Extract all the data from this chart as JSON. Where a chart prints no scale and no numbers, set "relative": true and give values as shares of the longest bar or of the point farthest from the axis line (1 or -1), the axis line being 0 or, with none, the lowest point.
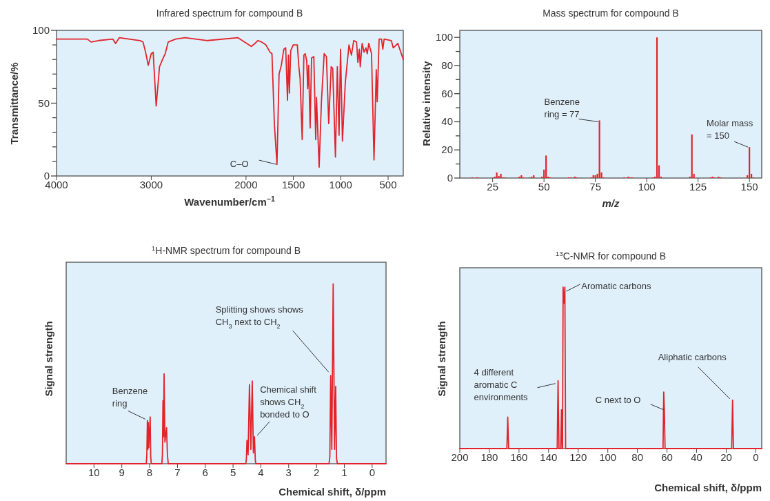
{
  "chart_data": [
    {
      "type": "line",
      "title": "Infrared spectrum for compound B",
      "xlabel": "Wavenumber/cm$^{−1}$",
      "ylabel": "Transmittance/%",
      "color": "#e3232b",
      "x": [
        4000,
        3675,
        3635,
        3556,
        3405,
        3377,
        3337,
        3119,
        3087,
        3060,
        3032,
        3000,
        2980,
        2948,
        2913,
        2881,
        2853,
        2821,
        2742,
        2643,
        2405,
        2087,
        1944,
        1905,
        1875,
        1835,
        1790,
        1746,
        1726,
        1700,
        1673,
        1651,
        1627,
        1601,
        1581,
        1562,
        1552,
        1542,
        1528,
        1502,
        1458,
        1442,
        1429,
        1407,
        1389,
        1375,
        1359,
        1349,
        1339,
        1323,
        1308,
        1284,
        1264,
        1256,
        1228,
        1204,
        1175,
        1151,
        1127,
        1101,
        1085,
        1056,
        1036,
        1018,
        1002,
        982,
        952,
        913,
        887,
        863,
        833,
        819,
        804,
        794,
        774,
        754,
        734,
        720,
        704,
        675,
        649,
        625,
        615,
        595,
        569,
        556,
        542,
        466,
        446,
        397,
        340
      ],
      "values": [
        94,
        94,
        92,
        93,
        94,
        91,
        95,
        93,
        92,
        85,
        76,
        84,
        85,
        48,
        75,
        80,
        84,
        92,
        94,
        95,
        93,
        95,
        89,
        91,
        93,
        92,
        90,
        85,
        84,
        35,
        8,
        70,
        76,
        87,
        88,
        52,
        83,
        57,
        86,
        90,
        90,
        75,
        67,
        25,
        83,
        84,
        79,
        60,
        76,
        33,
        81,
        82,
        25,
        54,
        6,
        51,
        84,
        82,
        36,
        75,
        74,
        13,
        75,
        28,
        87,
        24,
        64,
        90,
        83,
        93,
        92,
        78,
        87,
        75,
        91,
        85,
        88,
        84,
        91,
        84,
        11,
        73,
        51,
        94,
        94,
        87,
        94,
        93,
        88,
        91,
        80
      ],
      "xlim": [
        4000,
        340
      ],
      "xticks": [
        4000,
        3000,
        2000,
        1500,
        1000,
        500
      ],
      "ylim": [
        0,
        100
      ],
      "yticks": [
        0,
        {
          "value": 10,
          "label": null
        },
        {
          "value": 20,
          "label": null
        },
        {
          "value": 30,
          "label": null
        },
        {
          "value": 40,
          "label": null
        },
        50,
        {
          "value": 60,
          "label": null
        },
        {
          "value": 70,
          "label": null
        },
        {
          "value": 80,
          "label": null
        },
        {
          "value": 90,
          "label": null
        },
        100
      ],
      "annotations": [
        {
          "text": "C–O",
          "x": 1673,
          "y": 8
        }
      ]
    },
    {
      "type": "bar",
      "title": "Mass spectrum for compound B",
      "xlabel": "m/z",
      "ylabel": "Relative intensity",
      "color": "#e3232b",
      "x": [
        15,
        17,
        18,
        26,
        27,
        28,
        29,
        30,
        31,
        38,
        39,
        40,
        43,
        44,
        45,
        49,
        50,
        51,
        52,
        53,
        62,
        63,
        65,
        66,
        73,
        74,
        75,
        76,
        77,
        78,
        79,
        89,
        91,
        92,
        93,
        103,
        104,
        105,
        106,
        107,
        121,
        122,
        123,
        131,
        132,
        133,
        135,
        136,
        149,
        150,
        151,
        152
      ],
      "values": [
        0.5,
        0.5,
        0.5,
        1,
        4,
        1.5,
        3,
        0.5,
        0.5,
        1,
        2,
        0.5,
        0.5,
        1,
        2,
        1,
        6,
        16,
        1,
        0.5,
        0.5,
        0.5,
        1,
        0.5,
        0.5,
        2,
        2,
        3,
        41,
        4,
        0.5,
        0.5,
        1,
        0.5,
        0.5,
        0.5,
        1,
        100,
        9,
        1,
        1,
        31,
        3,
        0.5,
        1,
        0.5,
        1,
        0.5,
        2,
        22,
        3,
        0.5
      ],
      "xlim": [
        9,
        156
      ],
      "xticks": [
        25,
        50,
        75,
        100,
        125,
        150
      ],
      "ylim": [
        0,
        105
      ],
      "yticks": [
        0,
        {
          "value": 10,
          "label": null
        },
        20,
        {
          "value": 30,
          "label": null
        },
        40,
        {
          "value": 50,
          "label": null
        },
        60,
        {
          "value": 70,
          "label": null
        },
        80,
        {
          "value": 90,
          "label": null
        },
        100
      ],
      "annotations": [
        {
          "text": "Benzene\nring = 77",
          "x": 77,
          "y": 41
        },
        {
          "text": "Molar mass\n= 150",
          "x": 150,
          "y": 22
        }
      ]
    },
    {
      "type": "line",
      "title": "$^{1}$H-NMR spectrum for compound B",
      "xlabel": "Chemical shift, δ/ppm",
      "ylabel": "Signal strength",
      "color": "#e3232b",
      "relative": true,
      "x": [
        11,
        8.12,
        8.1,
        8.08,
        8.065,
        8.05,
        8.03,
        7.98,
        7.96,
        7.94,
        7.56,
        7.54,
        7.52,
        7.5,
        7.48,
        7.45,
        7.39,
        7.36,
        7.33,
        4.54,
        4.52,
        4.5,
        4.46,
        4.41,
        4.36,
        4.31,
        4.27,
        4.23,
        4.2,
        4.18,
        1.55,
        1.52,
        1.49,
        1.45,
        1.4,
        1.35,
        1.31,
        1.28,
        1.25,
        -0.5
      ],
      "values": [
        0,
        0,
        0.05,
        0.24,
        0.08,
        0.23,
        0.09,
        0.26,
        0.04,
        0,
        0,
        0.05,
        0.35,
        0.15,
        0.5,
        0.12,
        0.2,
        0.05,
        0,
        0,
        0.03,
        0.13,
        0.05,
        0.44,
        0.08,
        0.46,
        0.06,
        0.15,
        0.02,
        0,
        0,
        0.04,
        0.49,
        0.08,
        1,
        0.08,
        0.43,
        0.03,
        0,
        0
      ],
      "xlim": [
        11,
        -0.5
      ],
      "xticks": [
        10,
        9,
        8,
        7,
        6,
        5,
        4,
        3,
        2,
        1,
        0
      ],
      "annotations": [
        {
          "text": "Benzene\nring",
          "x": 8.08,
          "y": 0.24
        },
        {
          "text": "Splitting shows shows\nCH$_{3}$ next to CH$_{2}$",
          "x": 1.49,
          "y": 0.49
        },
        {
          "text": "Chemical shift\nshows CH$_{2}$\nbonded to O",
          "x": 4.23,
          "y": 0.15
        }
      ]
    },
    {
      "type": "line",
      "title": "$^{13}$C-NMR for compound B",
      "xlabel": "Chemical shift, δ/ppm",
      "ylabel": "Signal strength",
      "color": "#e3232b",
      "relative": true,
      "x": [
        200,
        168.2,
        167.6,
        167,
        134.2,
        133.6,
        133,
        131.8,
        131.3,
        130.8,
        130.6,
        130.2,
        129.6,
        129,
        128.5,
        62.7,
        62.2,
        61.8,
        61.3,
        16.3,
        15.7,
        15.1,
        -4
      ],
      "values": [
        0,
        0,
        0.195,
        0,
        0,
        0.42,
        0,
        0,
        0.24,
        0,
        0,
        1,
        0.9,
        1,
        0,
        0,
        0.35,
        0.24,
        0,
        0,
        0.3,
        0,
        0
      ],
      "xlim": [
        200,
        -4
      ],
      "xticks": [
        200,
        180,
        160,
        140,
        120,
        100,
        80,
        60,
        40,
        20,
        0
      ],
      "annotations": [
        {
          "text": "Aromatic carbons",
          "x": 129.5,
          "y": 1
        },
        {
          "text": "4 different\naromatic C\nenvironments",
          "x": 133.6,
          "y": 0.42
        },
        {
          "text": "C next to O",
          "x": 61.8,
          "y": 0.24
        },
        {
          "text": "Aliphatic carbons",
          "x": 15.7,
          "y": 0.3
        }
      ]
    }
  ]
}
